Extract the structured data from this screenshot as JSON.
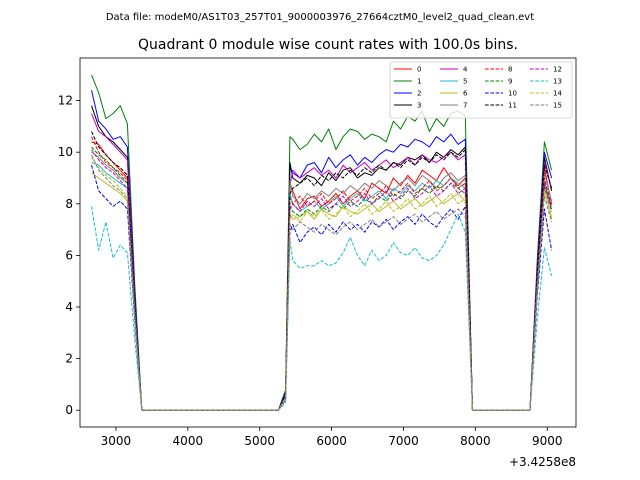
{
  "figure": {
    "suptitle": "Data file: modeM0/AS1T03_257T01_9000003976_27664cztM0_level2_quad_clean.evt",
    "title": "Quadrant 0 module wise count rates with 100.0s bins.",
    "x_offset_label": "+3.4258e8"
  },
  "chart_data": {
    "type": "line",
    "title": "Quadrant 0 module wise count rates with 100.0s bins.",
    "xlabel": "",
    "ylabel": "",
    "x_offset": 342580000,
    "xlim": [
      2500,
      9400
    ],
    "ylim": [
      -0.65,
      13.65
    ],
    "xticks": [
      3000,
      4000,
      5000,
      6000,
      7000,
      8000,
      9000
    ],
    "yticks": [
      0,
      2,
      4,
      6,
      8,
      10,
      12
    ],
    "grid": false,
    "legend_position": "top-right",
    "x": [
      2660,
      2760,
      2860,
      2960,
      3060,
      3160,
      3260,
      3360,
      5260,
      5360,
      5420,
      5460,
      5560,
      5660,
      5760,
      5860,
      5960,
      6060,
      6160,
      6260,
      6360,
      6460,
      6560,
      6660,
      6760,
      6860,
      6960,
      7060,
      7160,
      7260,
      7360,
      7460,
      7560,
      7660,
      7760,
      7860,
      7960,
      8060,
      8760,
      8860,
      8960,
      9060
    ],
    "series": [
      {
        "name": "0",
        "color": "#ff0000",
        "dash": false,
        "values": [
          10.4,
          10.3,
          9.9,
          9.6,
          9.3,
          9.0,
          4.0,
          0,
          0,
          0.5,
          8.8,
          8.5,
          7.8,
          8.2,
          8.3,
          7.9,
          8.1,
          8.4,
          8.0,
          8.3,
          8.5,
          8.2,
          8.8,
          8.6,
          8.4,
          9.0,
          8.7,
          9.1,
          8.8,
          9.3,
          9.1,
          8.9,
          9.4,
          9.0,
          8.7,
          9.0,
          0,
          0,
          0,
          5.0,
          9.4,
          8.0
        ]
      },
      {
        "name": "1",
        "color": "#008000",
        "dash": false,
        "values": [
          13.0,
          12.3,
          11.3,
          11.5,
          11.8,
          11.1,
          5.0,
          0,
          0,
          0.8,
          10.6,
          10.5,
          10.1,
          10.3,
          10.7,
          10.4,
          10.9,
          10.1,
          10.6,
          10.9,
          10.8,
          10.5,
          10.7,
          10.6,
          10.4,
          11.2,
          10.9,
          11.4,
          11.2,
          11.6,
          10.8,
          11.3,
          11.0,
          11.5,
          11.6,
          11.4,
          0,
          0,
          0,
          5.8,
          10.4,
          9.3
        ]
      },
      {
        "name": "2",
        "color": "#0000ff",
        "dash": false,
        "values": [
          12.4,
          11.2,
          10.9,
          10.5,
          10.6,
          10.2,
          4.6,
          0,
          0,
          0.7,
          9.4,
          9.2,
          9.0,
          9.5,
          9.6,
          9.2,
          9.8,
          9.4,
          9.7,
          9.9,
          9.5,
          9.8,
          9.6,
          9.9,
          10.1,
          10.0,
          10.3,
          10.2,
          10.5,
          10.4,
          10.2,
          10.6,
          10.4,
          10.7,
          10.3,
          10.5,
          0,
          0,
          0,
          5.5,
          10.0,
          9.0
        ]
      },
      {
        "name": "3",
        "color": "#000000",
        "dash": false,
        "values": [
          11.8,
          11.0,
          10.6,
          10.4,
          10.1,
          9.8,
          4.3,
          0,
          0,
          0.6,
          9.6,
          9.0,
          8.8,
          9.1,
          9.0,
          8.7,
          9.2,
          8.9,
          9.3,
          9.4,
          9.0,
          9.2,
          9.1,
          9.4,
          9.3,
          9.6,
          9.5,
          9.8,
          9.7,
          9.9,
          9.6,
          10.0,
          9.8,
          10.1,
          9.9,
          10.2,
          0,
          0,
          0,
          5.3,
          9.8,
          8.5
        ]
      },
      {
        "name": "4",
        "color": "#bf00bf",
        "dash": false,
        "values": [
          11.5,
          10.8,
          10.6,
          10.3,
          10.0,
          9.7,
          4.2,
          0,
          0,
          0.6,
          8.7,
          9.3,
          9.0,
          9.2,
          9.4,
          9.1,
          9.3,
          9.0,
          9.5,
          9.2,
          9.4,
          9.6,
          9.3,
          9.5,
          9.7,
          9.4,
          9.6,
          9.8,
          9.5,
          9.9,
          9.7,
          9.6,
          9.8,
          10.0,
          9.7,
          9.9,
          0,
          0,
          0,
          5.2,
          9.6,
          8.6
        ]
      },
      {
        "name": "5",
        "color": "#17becf",
        "dash": false,
        "values": [
          9.6,
          9.5,
          9.2,
          9.0,
          8.8,
          8.6,
          3.9,
          0,
          0,
          0.5,
          8.4,
          8.0,
          7.7,
          7.9,
          8.1,
          7.8,
          8.0,
          8.3,
          7.9,
          8.2,
          8.4,
          8.1,
          8.3,
          8.5,
          8.2,
          8.6,
          8.4,
          8.7,
          8.5,
          8.8,
          8.6,
          8.9,
          8.7,
          9.0,
          8.8,
          8.6,
          0,
          0,
          0,
          4.9,
          8.9,
          7.8
        ]
      },
      {
        "name": "6",
        "color": "#bcbd22",
        "dash": false,
        "values": [
          9.2,
          9.0,
          8.8,
          8.6,
          8.4,
          8.1,
          3.7,
          0,
          0,
          0.5,
          7.6,
          7.4,
          7.5,
          7.7,
          7.4,
          7.8,
          7.6,
          7.5,
          7.9,
          7.7,
          7.6,
          7.8,
          8.0,
          7.7,
          7.9,
          8.1,
          7.8,
          8.0,
          8.2,
          7.9,
          8.1,
          8.3,
          8.0,
          8.2,
          8.4,
          8.1,
          0,
          0,
          0,
          4.8,
          8.6,
          7.4
        ]
      },
      {
        "name": "7",
        "color": "#7f7f7f",
        "dash": false,
        "values": [
          10.0,
          9.8,
          9.5,
          9.3,
          9.0,
          8.8,
          4.0,
          0,
          0,
          0.5,
          8.9,
          8.3,
          8.0,
          8.4,
          8.2,
          8.5,
          8.3,
          8.6,
          8.4,
          8.7,
          8.5,
          8.8,
          8.6,
          8.9,
          8.7,
          8.5,
          8.8,
          9.0,
          8.7,
          9.1,
          8.9,
          8.6,
          9.0,
          9.2,
          8.9,
          9.1,
          0,
          0,
          0,
          5.1,
          9.2,
          8.1
        ]
      },
      {
        "name": "8",
        "color": "#ff0000",
        "dash": true,
        "values": [
          10.6,
          10.0,
          9.6,
          9.4,
          9.2,
          8.9,
          3.9,
          0,
          0,
          0.5,
          8.2,
          8.0,
          8.3,
          7.9,
          8.1,
          8.4,
          8.0,
          8.2,
          8.5,
          8.1,
          8.3,
          8.6,
          8.2,
          8.4,
          8.7,
          8.3,
          8.5,
          8.8,
          8.4,
          8.6,
          8.9,
          8.5,
          8.7,
          9.0,
          8.6,
          8.8,
          0,
          0,
          0,
          5.0,
          9.0,
          7.9
        ]
      },
      {
        "name": "9",
        "color": "#008000",
        "dash": true,
        "values": [
          10.2,
          9.9,
          9.7,
          9.4,
          9.1,
          8.8,
          3.8,
          0,
          0,
          0.5,
          7.9,
          7.7,
          7.5,
          7.8,
          7.6,
          7.9,
          7.7,
          8.0,
          7.8,
          8.1,
          7.9,
          8.2,
          8.0,
          8.3,
          8.1,
          8.4,
          8.2,
          8.5,
          8.3,
          8.6,
          8.4,
          8.7,
          8.5,
          8.8,
          8.6,
          8.4,
          0,
          0,
          0,
          4.9,
          8.7,
          7.7
        ]
      },
      {
        "name": "10",
        "color": "#0000ff",
        "dash": true,
        "values": [
          9.5,
          8.5,
          8.2,
          7.9,
          8.1,
          7.8,
          3.5,
          0,
          0,
          0.4,
          6.9,
          7.2,
          6.5,
          6.9,
          7.1,
          6.8,
          7.2,
          6.9,
          7.3,
          7.0,
          7.2,
          6.9,
          7.3,
          7.1,
          7.4,
          7.0,
          7.3,
          7.5,
          7.2,
          7.6,
          7.3,
          7.1,
          7.5,
          7.8,
          7.4,
          7.9,
          0,
          0,
          0,
          4.4,
          7.8,
          6.2
        ]
      },
      {
        "name": "11",
        "color": "#000000",
        "dash": true,
        "values": [
          10.8,
          10.2,
          9.9,
          9.6,
          9.4,
          9.1,
          4.0,
          0,
          0,
          0.6,
          8.4,
          8.6,
          8.8,
          9.0,
          8.7,
          9.1,
          8.9,
          9.2,
          9.0,
          9.3,
          9.1,
          9.4,
          9.2,
          9.5,
          9.3,
          9.6,
          9.4,
          9.7,
          9.5,
          9.8,
          9.6,
          9.9,
          9.7,
          10.0,
          9.8,
          10.1,
          0,
          0,
          0,
          5.2,
          9.5,
          8.6
        ]
      },
      {
        "name": "12",
        "color": "#bf00bf",
        "dash": true,
        "values": [
          10.1,
          9.7,
          9.4,
          9.2,
          8.9,
          8.6,
          3.8,
          0,
          0,
          0.5,
          7.8,
          8.0,
          7.7,
          8.1,
          7.9,
          8.2,
          7.8,
          8.0,
          8.3,
          7.9,
          8.1,
          8.4,
          8.0,
          8.2,
          8.5,
          8.1,
          8.3,
          8.6,
          8.2,
          8.4,
          8.7,
          8.3,
          8.5,
          8.8,
          8.4,
          8.6,
          0,
          0,
          0,
          4.9,
          8.8,
          7.8
        ]
      },
      {
        "name": "13",
        "color": "#17becf",
        "dash": true,
        "values": [
          7.9,
          6.2,
          7.3,
          5.9,
          6.4,
          6.1,
          2.8,
          0,
          0,
          0.3,
          6.6,
          5.8,
          5.5,
          5.6,
          5.6,
          5.8,
          5.6,
          5.7,
          6.1,
          6.7,
          6.0,
          5.6,
          6.2,
          5.8,
          6.0,
          6.5,
          6.1,
          6.0,
          6.3,
          5.9,
          5.8,
          6.0,
          6.4,
          7.0,
          7.6,
          6.9,
          0,
          0,
          0,
          3.5,
          6.3,
          5.2
        ]
      },
      {
        "name": "14",
        "color": "#bcbd22",
        "dash": true,
        "values": [
          9.8,
          9.4,
          9.1,
          8.9,
          8.6,
          8.3,
          3.7,
          0,
          0,
          0.5,
          7.4,
          7.6,
          7.3,
          7.7,
          7.5,
          7.8,
          7.4,
          7.6,
          7.9,
          7.5,
          7.7,
          8.0,
          7.6,
          7.8,
          8.1,
          7.7,
          7.9,
          8.2,
          7.8,
          8.0,
          8.3,
          7.9,
          8.1,
          8.4,
          8.0,
          8.2,
          0,
          0,
          0,
          4.7,
          8.5,
          7.5
        ]
      },
      {
        "name": "15",
        "color": "#7f7f7f",
        "dash": true,
        "values": [
          9.9,
          9.3,
          9.0,
          8.7,
          8.5,
          8.2,
          3.6,
          0,
          0,
          0.4,
          7.2,
          7.0,
          7.3,
          7.1,
          6.9,
          7.2,
          7.0,
          6.8,
          7.1,
          7.3,
          7.0,
          7.2,
          7.4,
          7.1,
          7.3,
          7.5,
          7.2,
          7.4,
          7.6,
          7.3,
          7.5,
          7.7,
          7.4,
          7.6,
          7.8,
          7.5,
          0,
          0,
          0,
          4.6,
          8.3,
          7.3
        ]
      }
    ]
  }
}
